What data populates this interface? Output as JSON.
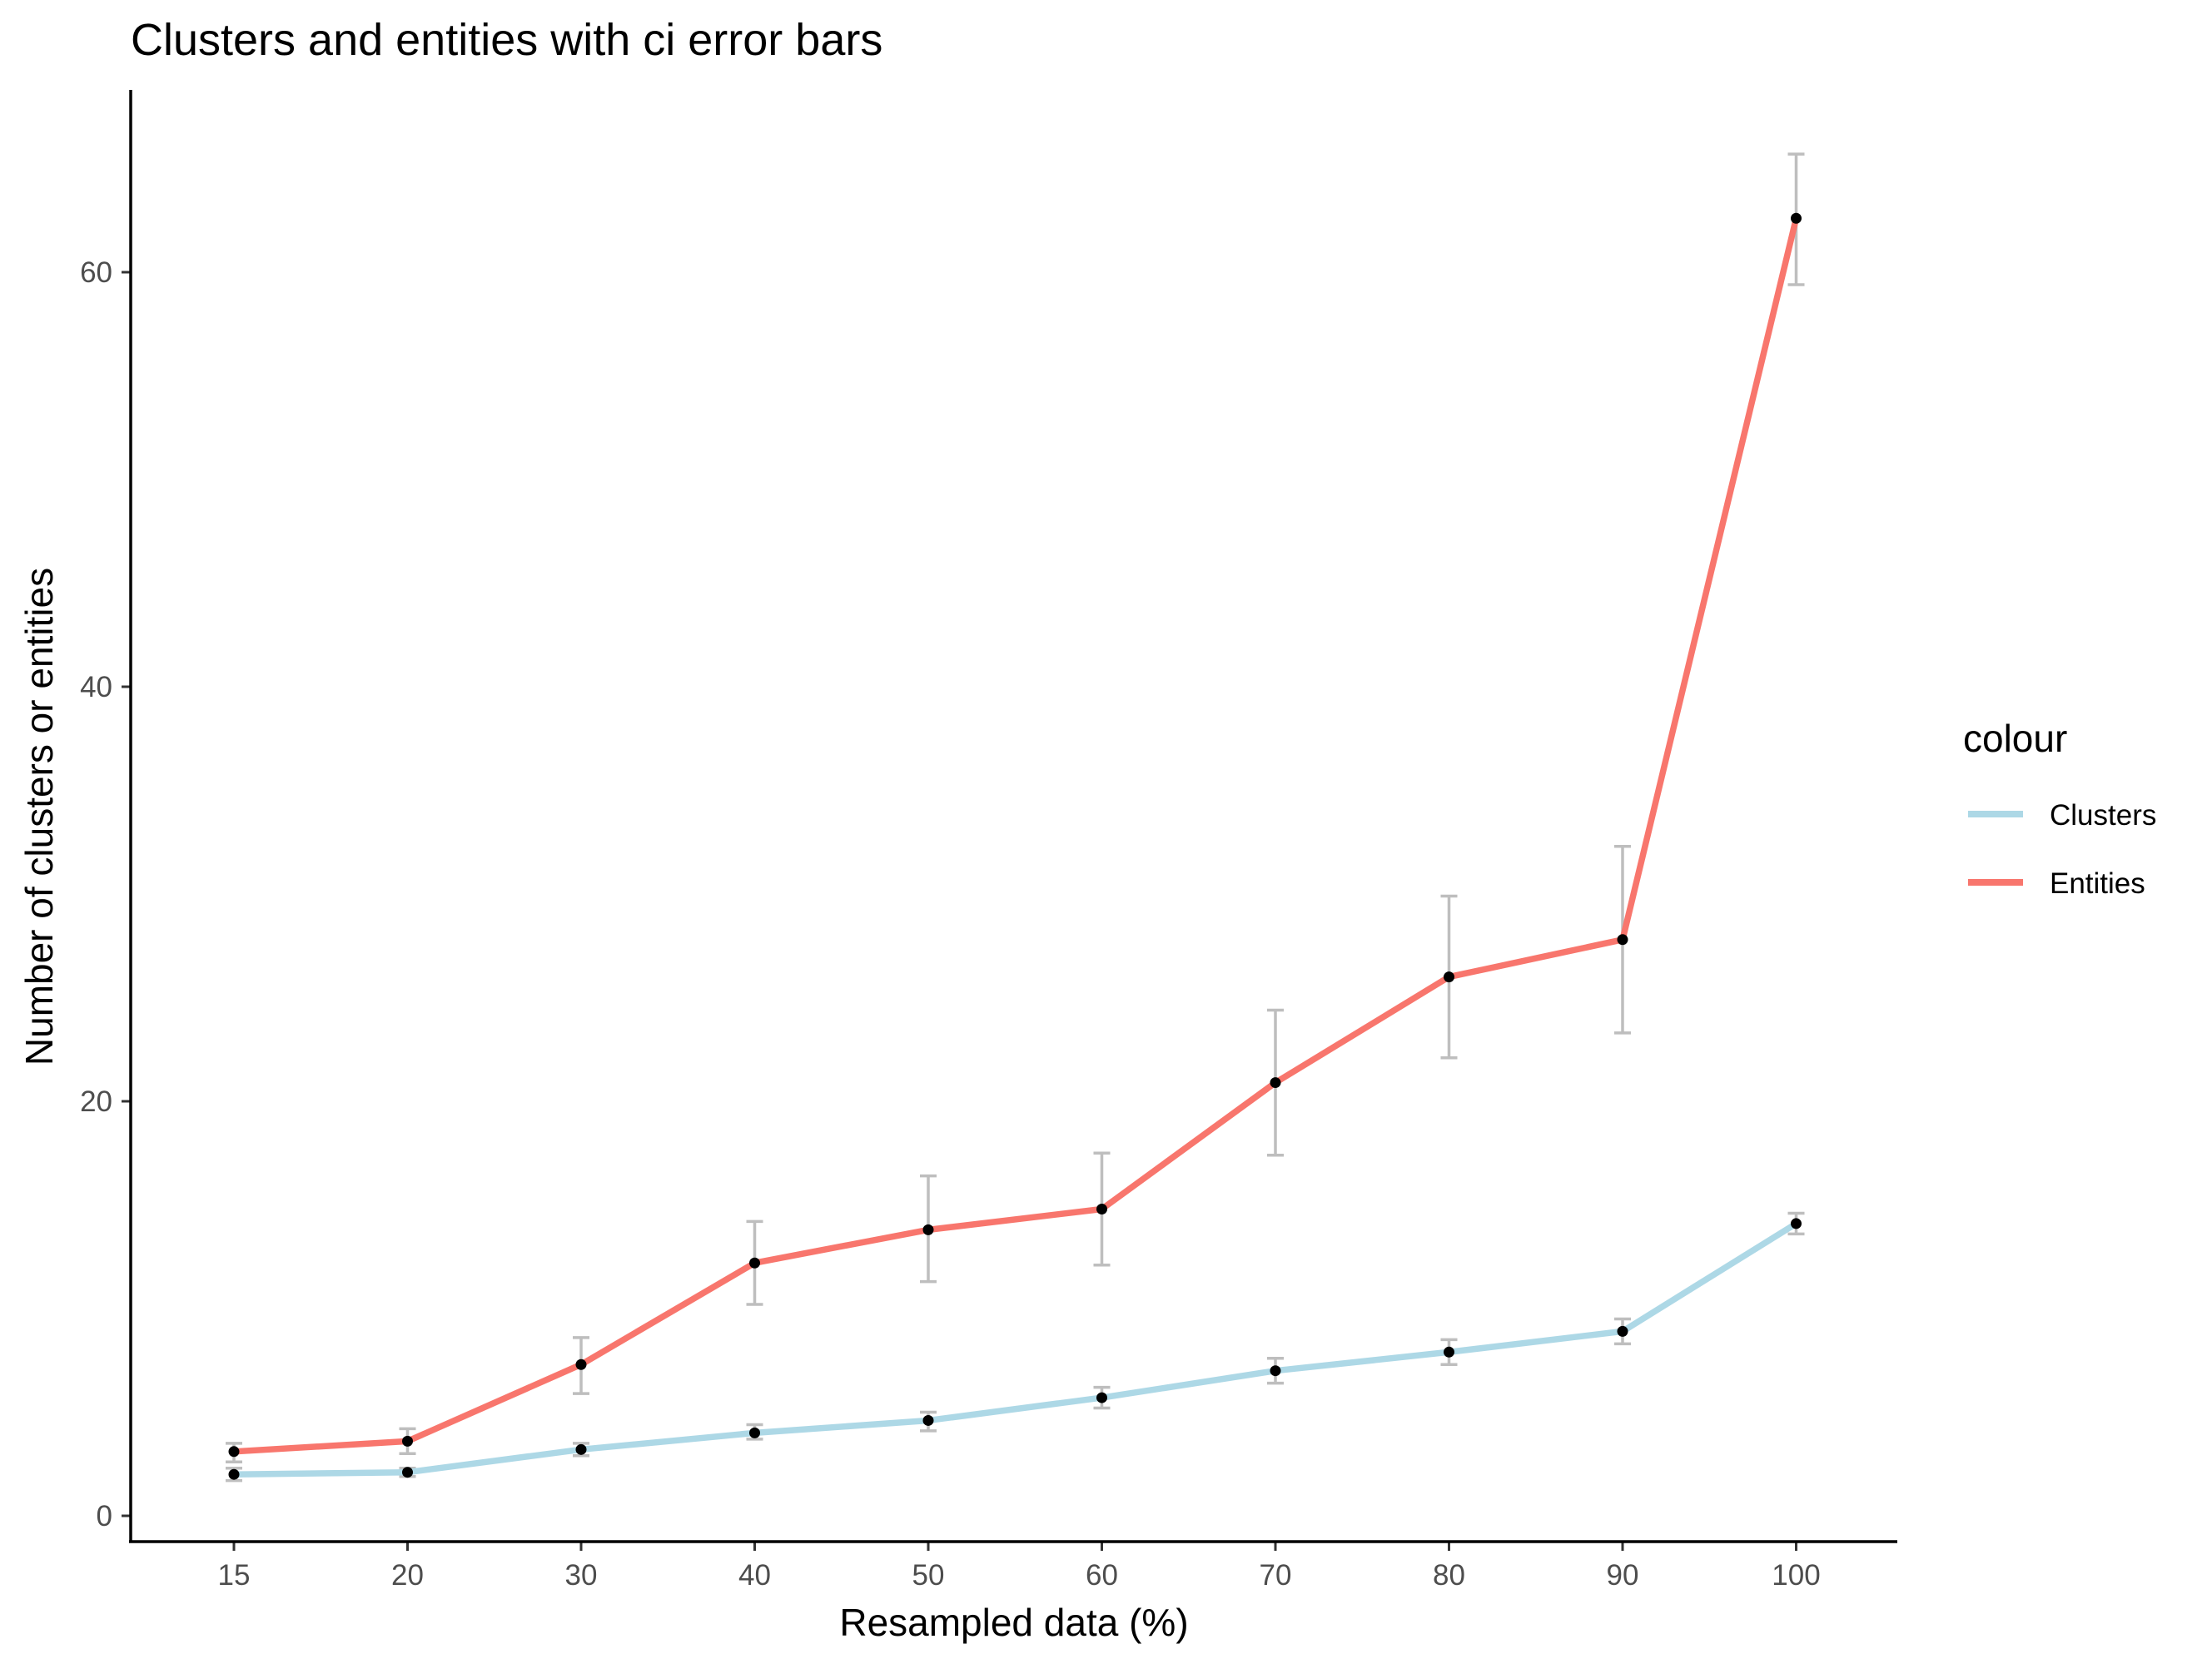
{
  "chart_data": {
    "type": "line",
    "title": "Clusters and entities with ci error bars",
    "xlabel": "Resampled data (%)",
    "ylabel": "Number of clusters or entities",
    "categories": [
      "15",
      "20",
      "30",
      "40",
      "50",
      "60",
      "70",
      "80",
      "90",
      "100"
    ],
    "yticks": [
      0,
      20,
      40,
      60
    ],
    "ylim": [
      -1.4,
      68
    ],
    "grid": false,
    "error_bars": "ci",
    "legend": {
      "title": "colour",
      "position": "right"
    },
    "series": [
      {
        "name": "Clusters",
        "color": "#add8e6",
        "values": [
          2.0,
          2.1,
          3.2,
          4.0,
          4.6,
          5.7,
          7.0,
          7.9,
          8.9,
          14.1
        ],
        "ci_low": [
          1.7,
          1.9,
          2.9,
          3.7,
          4.1,
          5.2,
          6.4,
          7.3,
          8.3,
          13.6
        ],
        "ci_high": [
          2.3,
          2.3,
          3.5,
          4.4,
          5.0,
          6.2,
          7.6,
          8.5,
          9.5,
          14.6
        ]
      },
      {
        "name": "Entities",
        "color": "#f8766d",
        "values": [
          3.1,
          3.6,
          7.3,
          12.2,
          13.8,
          14.8,
          20.9,
          26.0,
          27.8,
          62.6
        ],
        "ci_low": [
          2.6,
          3.0,
          5.9,
          10.2,
          11.3,
          12.1,
          17.4,
          22.1,
          23.3,
          59.4
        ],
        "ci_high": [
          3.5,
          4.2,
          8.6,
          14.2,
          16.4,
          17.5,
          24.4,
          29.9,
          32.3,
          65.7
        ]
      }
    ]
  }
}
